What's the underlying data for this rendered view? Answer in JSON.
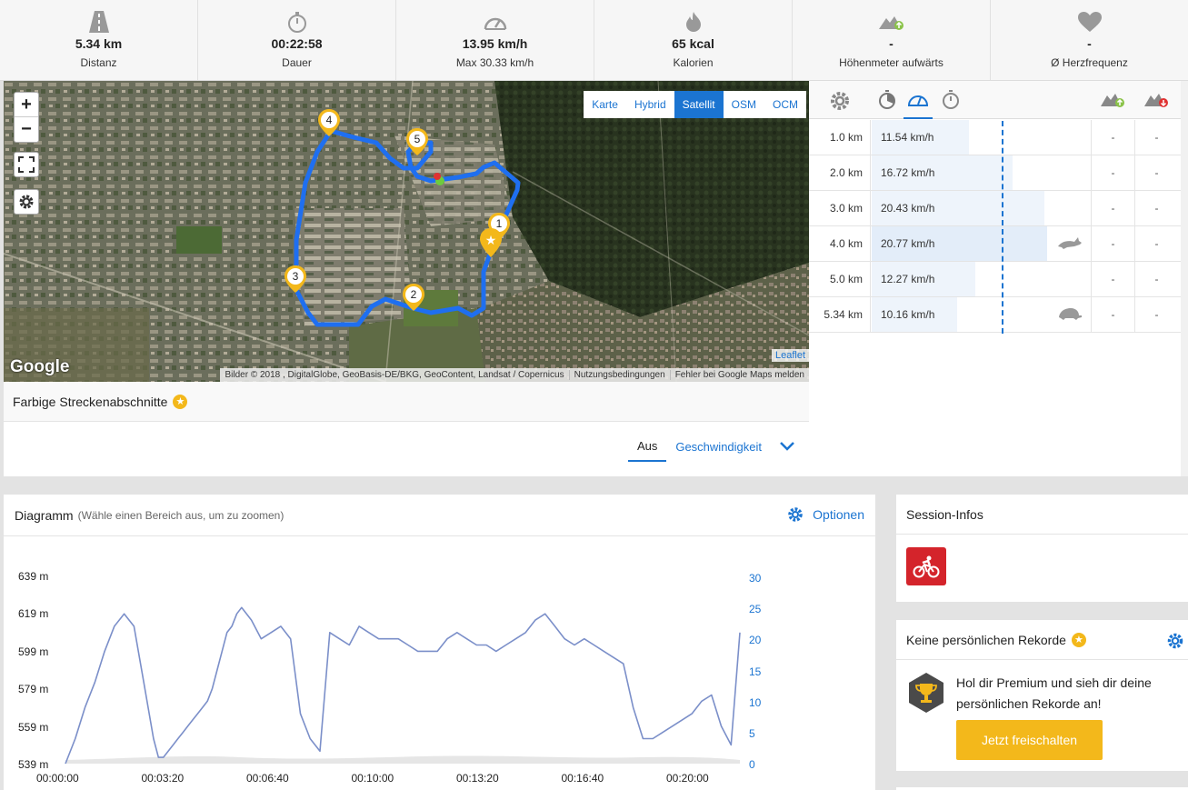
{
  "stats": [
    {
      "icon": "road-icon",
      "value": "5.34 km",
      "label": "Distanz"
    },
    {
      "icon": "stopwatch-icon",
      "value": "00:22:58",
      "label": "Dauer"
    },
    {
      "icon": "speedometer-icon",
      "value": "13.95 km/h",
      "label": "Max 30.33 km/h"
    },
    {
      "icon": "flame-icon",
      "value": "65 kcal",
      "label": "Kalorien"
    },
    {
      "icon": "elevation-up-icon",
      "value": "-",
      "label": "Höhenmeter aufwärts"
    },
    {
      "icon": "heart-icon",
      "value": "-",
      "label": "Ø Herzfrequenz"
    }
  ],
  "map": {
    "zoom_in": "+",
    "zoom_out": "−",
    "layers": [
      "Karte",
      "Hybrid",
      "Satellit",
      "OSM",
      "OCM"
    ],
    "active_layer": "Satellit",
    "google": "Google",
    "leaflet": "Leaflet",
    "attribution": [
      "Bilder © 2018 , DigitalGlobe, GeoBasis-DE/BKG, GeoContent, Landsat / Copernicus",
      "Nutzungsbedingungen",
      "Fehler bei Google Maps melden"
    ],
    "markers": [
      "1",
      "2",
      "3",
      "4",
      "5"
    ]
  },
  "segments": {
    "title": "Farbige Streckenabschnitte",
    "tab_off": "Aus",
    "tab_speed": "Geschwindigkeit"
  },
  "splits": {
    "rows": [
      {
        "km": "1.0 km",
        "speed": "11.54 km/h",
        "fraction": 0.556,
        "c1": "-",
        "c2": "-",
        "animal": ""
      },
      {
        "km": "2.0 km",
        "speed": "16.72 km/h",
        "fraction": 0.805,
        "c1": "-",
        "c2": "-",
        "animal": ""
      },
      {
        "km": "3.0 km",
        "speed": "20.43 km/h",
        "fraction": 0.984,
        "c1": "-",
        "c2": "-",
        "animal": ""
      },
      {
        "km": "4.0 km",
        "speed": "20.77 km/h",
        "fraction": 1.0,
        "c1": "-",
        "c2": "-",
        "animal": "hare-icon"
      },
      {
        "km": "5.0 km",
        "speed": "12.27 km/h",
        "fraction": 0.591,
        "c1": "-",
        "c2": "-",
        "animal": ""
      },
      {
        "km": "5.34 km",
        "speed": "10.16 km/h",
        "fraction": 0.489,
        "c1": "-",
        "c2": "-",
        "animal": "turtle-icon"
      }
    ]
  },
  "diagram": {
    "title": "Diagramm",
    "hint": "(Wähle einen Bereich aus, um zu zoomen)",
    "options": "Optionen"
  },
  "chart_data": {
    "type": "line",
    "y_left_ticks": [
      "639 m",
      "619 m",
      "599 m",
      "579 m",
      "559 m",
      "539 m"
    ],
    "y_right_ticks": [
      "30",
      "25",
      "20",
      "15",
      "10",
      "5",
      "0"
    ],
    "x_ticks": [
      "00:00:00",
      "00:03:20",
      "00:06:40",
      "00:10:00",
      "00:13:20",
      "00:16:40",
      "00:20:00"
    ],
    "ylim_left": [
      539,
      639
    ],
    "ylim_right": [
      0,
      30
    ],
    "series": [
      {
        "color": "#7b8fc9",
        "x": [
          0,
          20,
          40,
          60,
          80,
          100,
          120,
          140,
          160,
          180,
          190,
          200,
          210,
          220,
          230,
          240,
          250,
          260,
          270,
          280,
          290,
          300,
          310,
          320,
          330,
          340,
          350,
          360,
          380,
          400,
          420,
          440,
          460,
          480,
          500,
          520,
          540,
          560,
          580,
          600,
          620,
          640,
          660,
          680,
          700,
          720,
          740,
          760,
          780,
          800,
          820,
          840,
          860,
          880,
          900,
          920,
          940,
          960,
          980,
          1000,
          1020,
          1040,
          1060,
          1080,
          1100,
          1120,
          1140,
          1160,
          1180,
          1200,
          1220,
          1240,
          1260,
          1280,
          1300,
          1320,
          1340,
          1360,
          1378
        ],
        "values": [
          0,
          4,
          9,
          13,
          18,
          22,
          24,
          22,
          13,
          4,
          1,
          1,
          2,
          3,
          4,
          5,
          6,
          7,
          8,
          9,
          10,
          12,
          15,
          18,
          21,
          22,
          24,
          25,
          23,
          20,
          21,
          22,
          20,
          8,
          4,
          2,
          21,
          20,
          19,
          22,
          21,
          20,
          20,
          20,
          19,
          18,
          18,
          18,
          20,
          21,
          20,
          19,
          19,
          18,
          19,
          20,
          21,
          23,
          24,
          22,
          20,
          19,
          20,
          19,
          18,
          17,
          16,
          9,
          4,
          4,
          5,
          6,
          7,
          8,
          10,
          11,
          6,
          3,
          21
        ]
      }
    ]
  },
  "session": {
    "title": "Session-Infos",
    "sport_icon": "cycling-icon"
  },
  "records": {
    "title": "Keine persönlichen Rekorde",
    "text": "Hol dir Premium und sieh dir deine persönlichen Rekorde an!",
    "button": "Jetzt freischalten"
  },
  "colors": {
    "accent": "#1b74d1",
    "premium": "#f3b81b",
    "route": "#1f6ff0",
    "sport": "#d4242b"
  }
}
